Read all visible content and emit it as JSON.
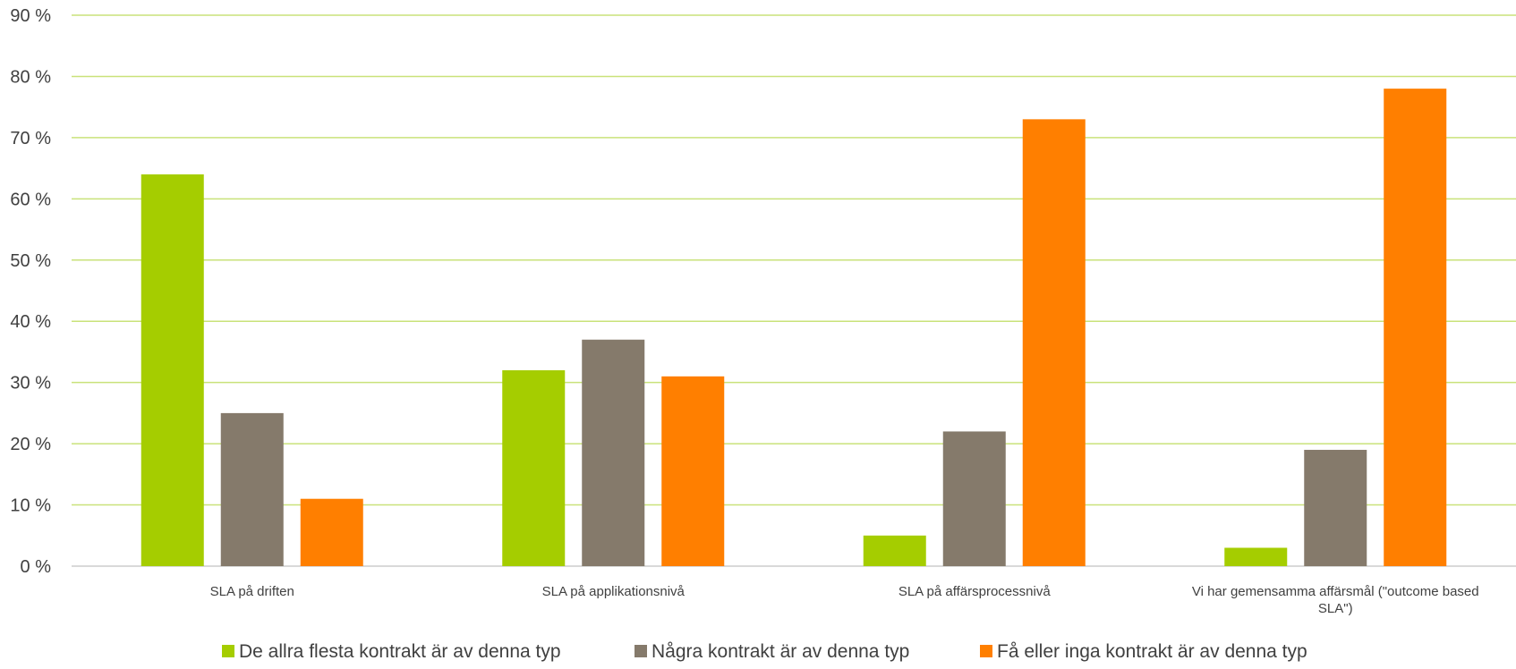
{
  "chart_data": {
    "type": "bar",
    "title": "",
    "xlabel": "",
    "ylabel": "",
    "categories": [
      [
        "SLA på driften"
      ],
      [
        "SLA på applikationsnivå"
      ],
      [
        "SLA på affärsprocessnivå"
      ],
      [
        "Vi har gemensamma affärsmål (\"outcome based",
        "SLA\")"
      ]
    ],
    "series": [
      {
        "name": "De allra flesta kontrakt är av denna typ",
        "color": "#A5CD00",
        "values": [
          64,
          32,
          5,
          3
        ]
      },
      {
        "name": "Några kontrakt är av denna typ",
        "color": "#857A6B",
        "values": [
          25,
          37,
          22,
          19
        ]
      },
      {
        "name": "Få eller inga kontrakt är av denna typ",
        "color": "#FF7F00",
        "values": [
          11,
          31,
          73,
          78
        ]
      }
    ],
    "ylim": [
      0,
      90
    ],
    "yticks": [
      0,
      10,
      20,
      30,
      40,
      50,
      60,
      70,
      80,
      90
    ],
    "ytick_suffix": " %",
    "grid": true,
    "grid_color": "#C9E27A",
    "axis_color": "#D9D9D9",
    "legend_position": "bottom"
  }
}
